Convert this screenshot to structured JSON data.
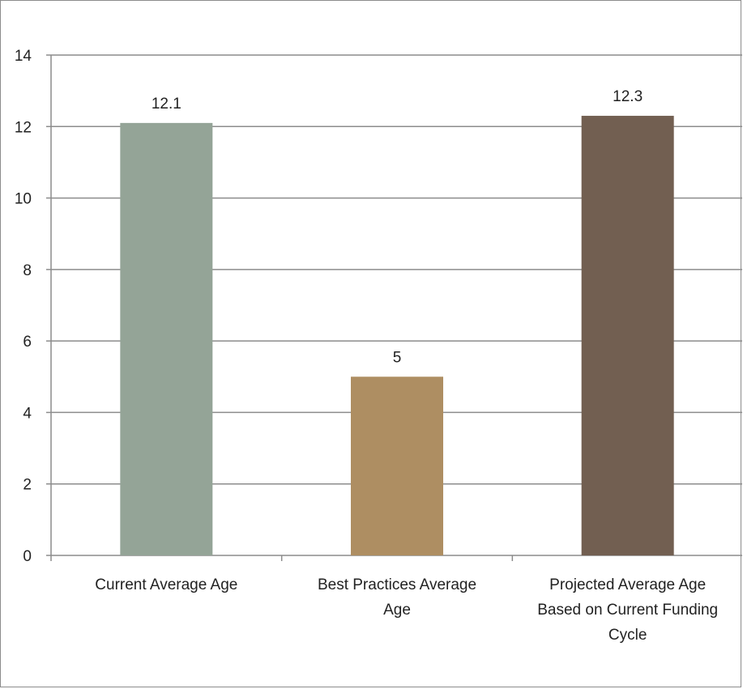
{
  "chart_data": {
    "type": "bar",
    "categories": [
      [
        "Current Average Age"
      ],
      [
        "Best Practices Average",
        "Age"
      ],
      [
        "Projected Average Age",
        "Based on Current Funding",
        "Cycle"
      ]
    ],
    "values": [
      12.1,
      5,
      12.3
    ],
    "data_labels": [
      "12.1",
      "5",
      "12.3"
    ],
    "colors": [
      "#94a497",
      "#ae8e62",
      "#725f51"
    ],
    "ylim": [
      0,
      14
    ],
    "yticks": [
      0,
      2,
      4,
      6,
      8,
      10,
      12,
      14
    ],
    "grid": true,
    "legend": "none",
    "title": "",
    "xlabel": "",
    "ylabel": ""
  }
}
